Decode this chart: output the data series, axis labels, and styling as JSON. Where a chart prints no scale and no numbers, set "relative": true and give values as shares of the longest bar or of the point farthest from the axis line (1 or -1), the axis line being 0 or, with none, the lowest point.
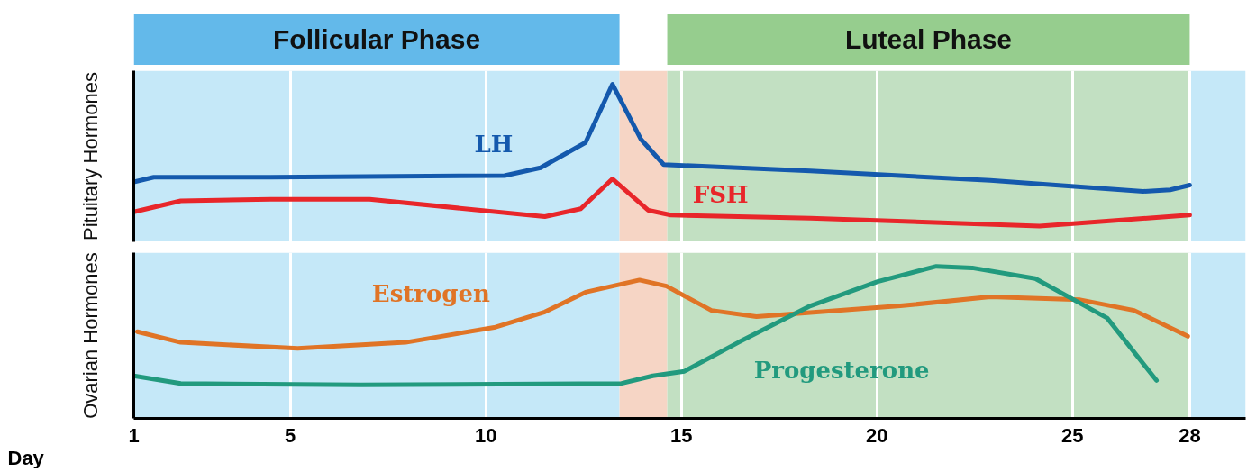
{
  "chart_data": [
    {
      "type": "line",
      "relative": true,
      "ylabel": "Pituitary Hormones",
      "xlim": [
        1,
        29.43
      ],
      "xticks": [
        1,
        5,
        10,
        15,
        20,
        25,
        28
      ],
      "tick_labels": false,
      "grid": "x",
      "bands": [
        {
          "axis": "x",
          "from": 1,
          "to": 13.42,
          "label": "Follicular Phase",
          "color": "#c5e8f8"
        },
        {
          "axis": "x",
          "from": 13.42,
          "to": 14.64,
          "color": "#f6d5c5"
        },
        {
          "axis": "x",
          "from": 14.64,
          "to": 28,
          "label": "Luteal Phase",
          "color": "#c2e0c2"
        },
        {
          "axis": "x",
          "from": 28,
          "to": 29.43,
          "color": "#c5e8f8"
        }
      ],
      "series": [
        {
          "name": "LH",
          "color": "#1459ad",
          "x": [
            1,
            1.51,
            4.5,
            10.48,
            11.4,
            12.55,
            13.24,
            13.97,
            14.55,
            18.3,
            22.9,
            26.81,
            27.5,
            28
          ],
          "values": [
            0.38,
            0.41,
            0.41,
            0.42,
            0.47,
            0.63,
            1.0,
            0.65,
            0.49,
            0.45,
            0.39,
            0.32,
            0.33,
            0.36
          ]
        },
        {
          "name": "FSH",
          "color": "#e8262a",
          "x": [
            1,
            2.2,
            4.5,
            7.03,
            11.51,
            12.43,
            13.24,
            14.16,
            14.73,
            18.3,
            24.16,
            28
          ],
          "values": [
            0.19,
            0.26,
            0.27,
            0.27,
            0.16,
            0.21,
            0.4,
            0.2,
            0.17,
            0.15,
            0.1,
            0.17
          ]
        }
      ]
    },
    {
      "type": "line",
      "relative": true,
      "ylabel": "Ovarian Hormones",
      "xlabel": "Day",
      "xlim": [
        1,
        29.43
      ],
      "xticks": [
        1,
        5,
        10,
        15,
        20,
        25,
        28
      ],
      "tick_labels": "x",
      "grid": "x",
      "bands": [
        {
          "axis": "x",
          "from": 1,
          "to": 13.42,
          "color": "#c5e8f8"
        },
        {
          "axis": "x",
          "from": 13.42,
          "to": 14.64,
          "color": "#f6d5c5"
        },
        {
          "axis": "x",
          "from": 14.64,
          "to": 28,
          "color": "#c2e0c2"
        },
        {
          "axis": "x",
          "from": 28,
          "to": 29.43,
          "color": "#c5e8f8"
        }
      ],
      "series": [
        {
          "name": "Estrogen",
          "color": "#e07426",
          "x": [
            1.09,
            2.2,
            5.19,
            7.95,
            10.25,
            11.51,
            12.55,
            13.93,
            14.62,
            15.77,
            16.92,
            20.6,
            22.9,
            25.2,
            26.58,
            27.95
          ],
          "values": [
            0.57,
            0.5,
            0.46,
            0.5,
            0.6,
            0.7,
            0.83,
            0.91,
            0.87,
            0.71,
            0.67,
            0.74,
            0.8,
            0.78,
            0.71,
            0.54
          ]
        },
        {
          "name": "Progesterone",
          "color": "#229a7e",
          "x": [
            1,
            2.2,
            6.8,
            13.47,
            14.27,
            15.08,
            16.46,
            18.3,
            20.02,
            21.52,
            22.44,
            24.05,
            25.89,
            27.15
          ],
          "values": [
            0.28,
            0.23,
            0.22,
            0.23,
            0.28,
            0.31,
            0.5,
            0.74,
            0.9,
            1.0,
            0.99,
            0.92,
            0.66,
            0.25
          ]
        }
      ]
    }
  ]
}
